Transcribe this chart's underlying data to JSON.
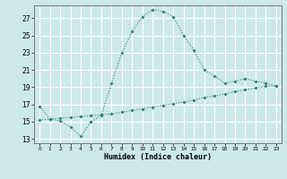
{
  "xlabel": "Humidex (Indice chaleur)",
  "line1_x": [
    0,
    1,
    2,
    3,
    4,
    5,
    6,
    7,
    8,
    9,
    10,
    11,
    12,
    13,
    14,
    15,
    16,
    17,
    18,
    19,
    20,
    21,
    22,
    23
  ],
  "line1_y": [
    16.8,
    15.3,
    15.1,
    14.4,
    13.3,
    15.0,
    15.7,
    19.5,
    23.0,
    25.5,
    27.2,
    28.0,
    27.8,
    27.2,
    25.0,
    23.3,
    21.0,
    20.3,
    19.5,
    19.7,
    20.0,
    19.7,
    19.5,
    19.1
  ],
  "line2_x": [
    0,
    1,
    2,
    3,
    4,
    5,
    6,
    7,
    8,
    9,
    10,
    11,
    12,
    13,
    14,
    15,
    16,
    17,
    18,
    19,
    20,
    21,
    22,
    23
  ],
  "line2_y": [
    15.2,
    15.3,
    15.4,
    15.5,
    15.6,
    15.7,
    15.8,
    15.9,
    16.1,
    16.3,
    16.5,
    16.7,
    16.9,
    17.1,
    17.3,
    17.5,
    17.8,
    18.0,
    18.2,
    18.5,
    18.7,
    18.9,
    19.1,
    19.2
  ],
  "line_color": "#2e7d6e",
  "bg_color": "#cce8e8",
  "grid_color": "#ffffff",
  "yticks": [
    13,
    15,
    17,
    19,
    21,
    23,
    25,
    27
  ],
  "ylim": [
    12.5,
    28.5
  ],
  "xlim": [
    -0.5,
    23.5
  ],
  "xtick_labels": [
    "0",
    "1",
    "2",
    "3",
    "4",
    "5",
    "6",
    "7",
    "8",
    "9",
    "10",
    "11",
    "12",
    "13",
    "14",
    "15",
    "16",
    "17",
    "18",
    "19",
    "20",
    "21",
    "22",
    "23"
  ]
}
